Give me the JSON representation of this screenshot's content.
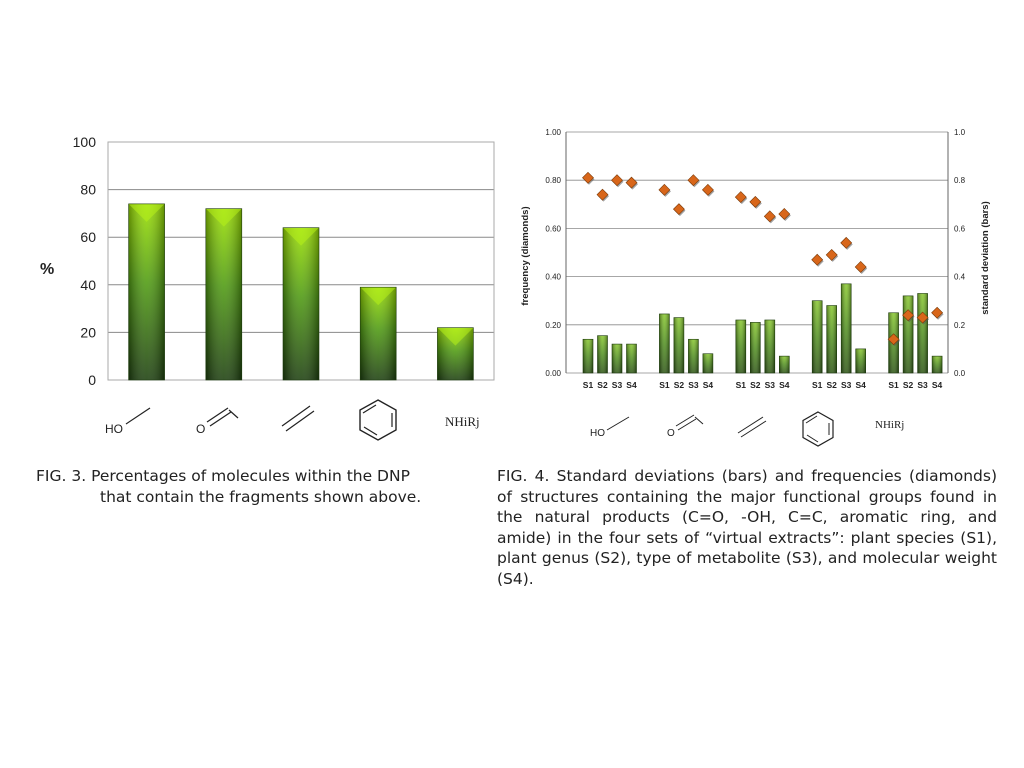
{
  "chart_data": [
    {
      "type": "bar",
      "ylabel": "%",
      "ylim": [
        0,
        100
      ],
      "yticks": [
        0,
        20,
        40,
        60,
        80,
        100
      ],
      "grid": true,
      "categories": [
        "HO",
        "O",
        "C=C",
        "benzene",
        "NHiRj"
      ],
      "category_labels": {
        "hydroxyl": "HO",
        "carbonyl": "O",
        "amide": "NHiRj"
      },
      "values": [
        74,
        72,
        64,
        39,
        22
      ],
      "colors": {
        "bar_light": "#8fd400",
        "bar_dark": "#1f4a12"
      }
    },
    {
      "type": "bar",
      "ylabel": "frequency (diamonds)",
      "ylabel_right": "standard deviation (bars)",
      "ylim": [
        0,
        1
      ],
      "yticks_left": [
        "0.00",
        "0.20",
        "0.40",
        "0.60",
        "0.80",
        "1.00"
      ],
      "yticks_right": [
        "0.0",
        "0.2",
        "0.4",
        "0.6",
        "0.8",
        "1.0"
      ],
      "grid": true,
      "categories": [
        "S1",
        "S2",
        "S3",
        "S4",
        "S1",
        "S2",
        "S3",
        "S4",
        "S1",
        "S2",
        "S3",
        "S4",
        "S1",
        "S2",
        "S3",
        "S4",
        "S1",
        "S2",
        "S3",
        "S4"
      ],
      "groups": [
        "HO",
        "O",
        "C=C",
        "benzene",
        "NHiRj"
      ],
      "series": [
        {
          "name": "standard deviation (bars)",
          "values": [
            0.14,
            0.155,
            0.12,
            0.12,
            0.245,
            0.23,
            0.14,
            0.08,
            0.22,
            0.21,
            0.22,
            0.07,
            0.3,
            0.28,
            0.37,
            0.1,
            0.25,
            0.32,
            0.33,
            0.07
          ]
        },
        {
          "name": "frequency (diamonds)",
          "values": [
            0.81,
            0.74,
            0.8,
            0.79,
            0.76,
            0.68,
            0.8,
            0.76,
            0.73,
            0.71,
            0.65,
            0.66,
            0.47,
            0.49,
            0.54,
            0.44,
            0.14,
            0.24,
            0.23,
            0.25
          ]
        }
      ],
      "colors": {
        "bar_light": "#7cbf1e",
        "bar_dark": "#2d5a14",
        "diamond": "#d8661a"
      }
    }
  ],
  "captions": {
    "fig3_line1": "FIG. 3. Percentages of molecules within the DNP",
    "fig3_line2": "that contain the fragments shown above.",
    "fig4": "FIG. 4. Standard deviations (bars) and frequencies (diamonds) of structures containing the major functional groups found in the natural products (C=O, -OH, C=C, aromatic ring, and amide) in the four sets of “virtual extracts”: plant species (S1), plant genus (S2), type of metabolite (S3), and molecular weight (S4)."
  }
}
